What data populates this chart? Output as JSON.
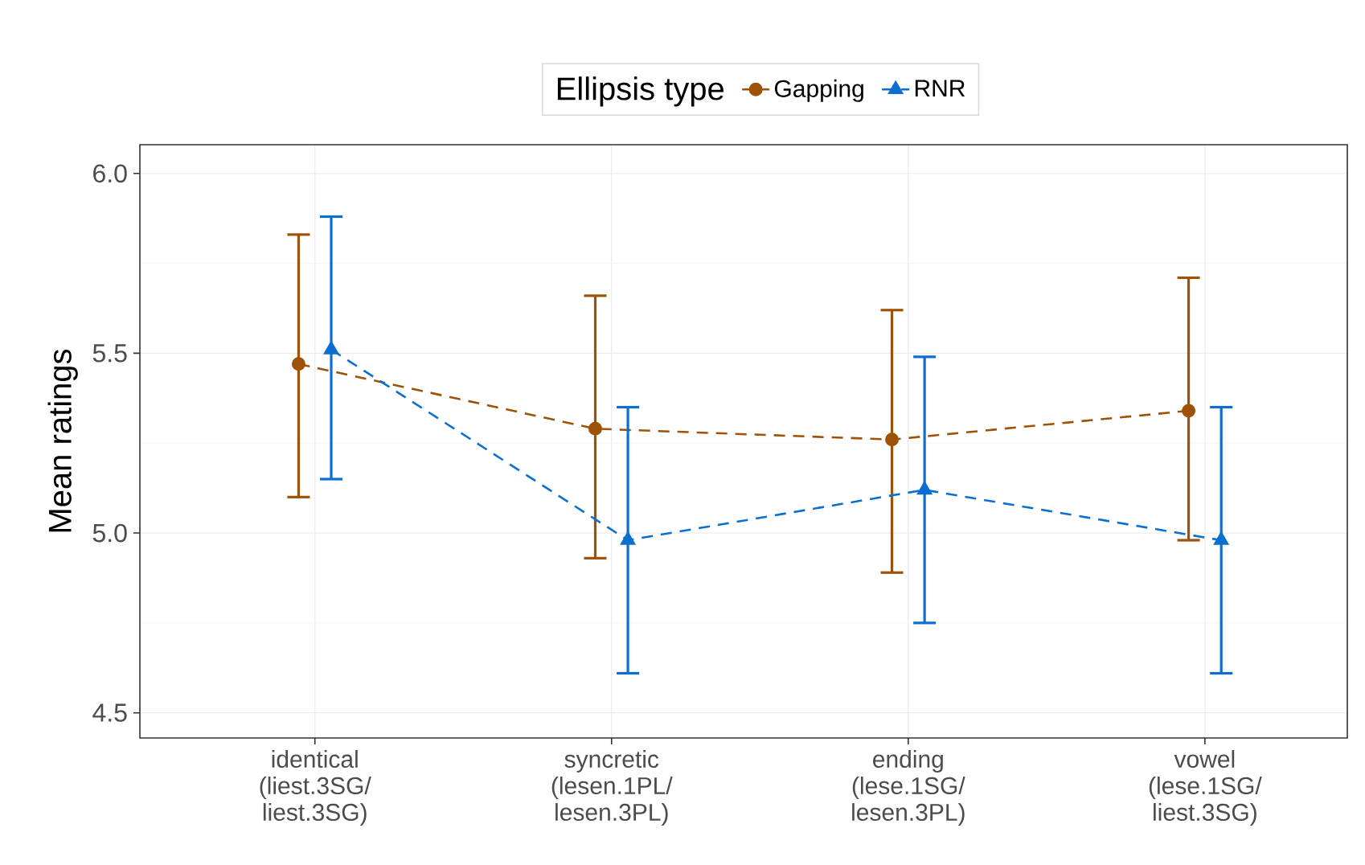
{
  "chart_data": {
    "type": "line",
    "ylabel": "Mean ratings",
    "legend_title": "Ellipsis type",
    "categories": [
      "identical (liest.3SG/ liest.3SG)",
      "syncretic (lesen.1PL/ lesen.3PL)",
      "ending (lese.1SG/ lesen.3PL)",
      "vowel (lese.1SG/ liest.3SG)"
    ],
    "series": [
      {
        "name": "Gapping",
        "color": "#9e5208",
        "marker": "circle",
        "values": [
          5.47,
          5.29,
          5.26,
          5.34
        ],
        "errors": [
          [
            5.1,
            5.83
          ],
          [
            4.93,
            5.66
          ],
          [
            4.89,
            5.62
          ],
          [
            4.98,
            5.71
          ]
        ]
      },
      {
        "name": "RNR",
        "color": "#0a6fd0",
        "marker": "triangle",
        "values": [
          5.51,
          4.98,
          5.12,
          4.98
        ],
        "errors": [
          [
            5.15,
            5.88
          ],
          [
            4.61,
            5.35
          ],
          [
            4.75,
            5.49
          ],
          [
            4.61,
            5.35
          ]
        ]
      }
    ],
    "ylim": [
      4.43,
      6.08
    ],
    "yticks": [
      {
        "value": 4.5,
        "label": "4.5"
      },
      {
        "value": 5.0,
        "label": "5.0"
      },
      {
        "value": 5.5,
        "label": "5.5"
      },
      {
        "value": 6.0,
        "label": "6.0"
      }
    ],
    "grid": true,
    "legend": "top",
    "line_style": "dashed"
  }
}
